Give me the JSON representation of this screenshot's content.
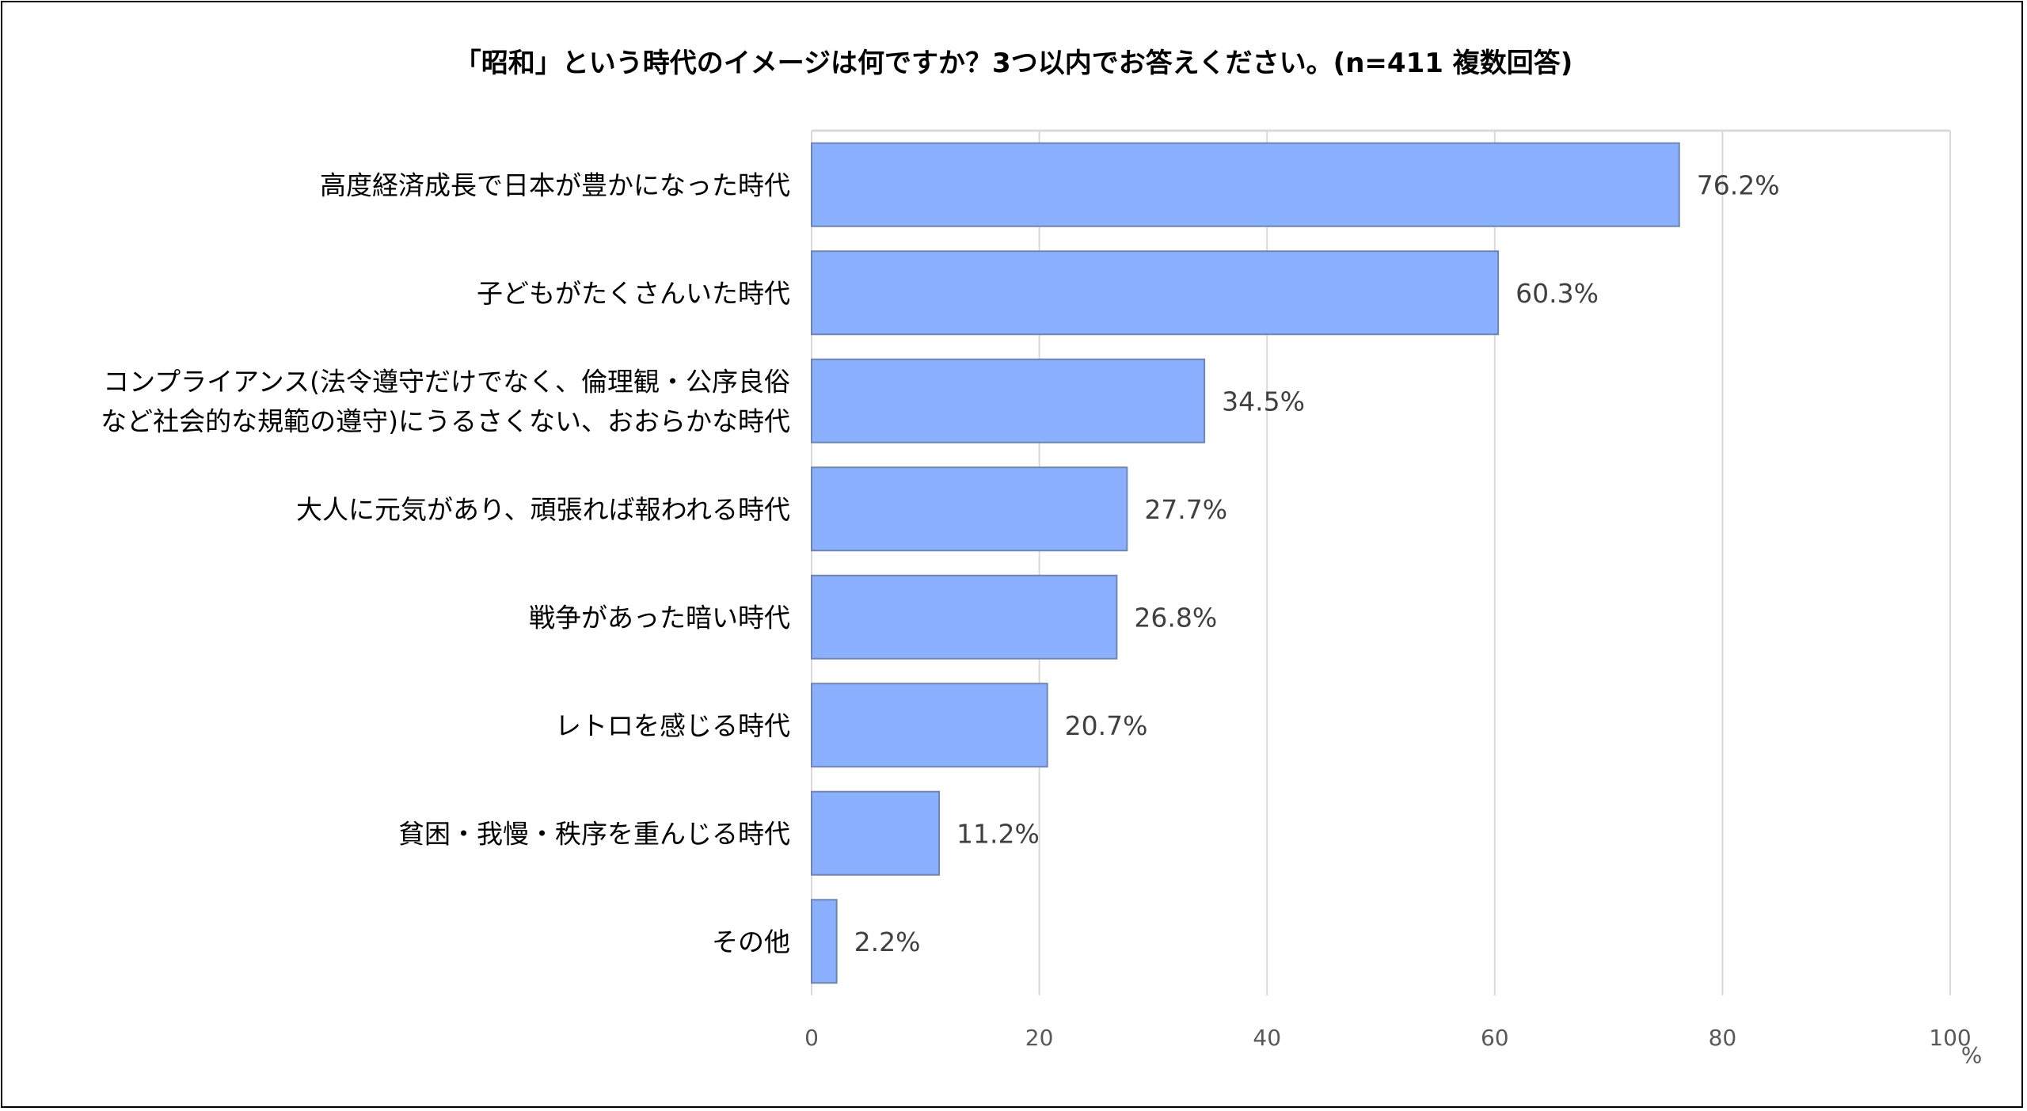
{
  "chart_data": {
    "type": "bar",
    "orientation": "horizontal",
    "title": "「昭和」という時代のイメージは何ですか？3つ以内でお答えください。(n=411 複数回答)",
    "categories": [
      [
        "高度経済成長で日本が豊かになった時代"
      ],
      [
        "子どもがたくさんいた時代"
      ],
      [
        "コンプライアンス(法令遵守だけでなく、倫理観・公序良俗",
        "など社会的な規範の遵守)にうるさくない、おおらかな時代"
      ],
      [
        "大人に元気があり、頑張れば報われる時代"
      ],
      [
        "戦争があった暗い時代"
      ],
      [
        "レトロを感じる時代"
      ],
      [
        "貧困・我慢・秩序を重んじる時代"
      ],
      [
        "その他"
      ]
    ],
    "values": [
      76.2,
      60.3,
      34.5,
      27.7,
      26.8,
      20.7,
      11.2,
      2.2
    ],
    "value_labels": [
      "76.2%",
      "60.3%",
      "34.5%",
      "27.7%",
      "26.8%",
      "20.7%",
      "11.2%",
      "2.2%"
    ],
    "xlim": [
      0,
      100
    ],
    "xticks": [
      0,
      20,
      40,
      60,
      80,
      100
    ],
    "xtick_labels": [
      "0",
      "20",
      "40",
      "60",
      "80",
      "100"
    ],
    "xunit": "%",
    "grid": true,
    "bar_color": "#8AB0FF",
    "bar_edge_color": "#6F85B0"
  }
}
